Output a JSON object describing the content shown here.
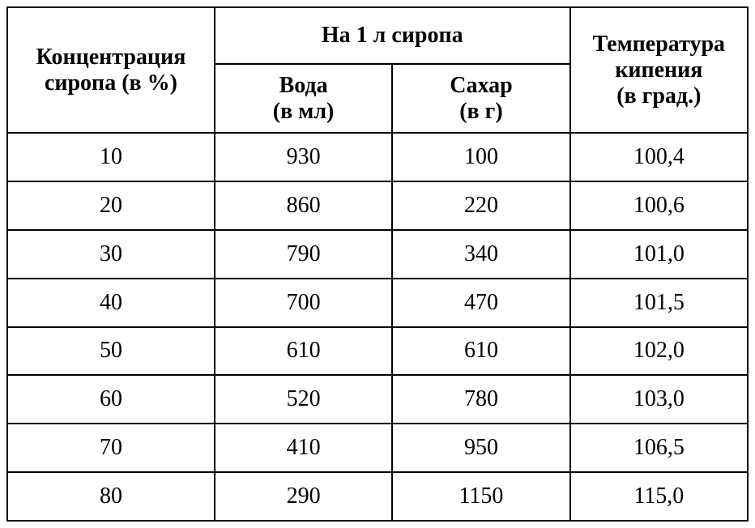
{
  "table": {
    "headers": {
      "concentration_line1": "Концентрация",
      "concentration_line2": "сиропа (в %)",
      "per_liter": "На 1 л сиропа",
      "water_line1": "Вода",
      "water_line2": "(в мл)",
      "sugar_line1": "Сахар",
      "sugar_line2": "(в г)",
      "temp_line1": "Температура",
      "temp_line2": "кипения",
      "temp_line3": "(в град.)"
    },
    "rows": [
      {
        "concentration": "10",
        "water": "930",
        "sugar": "100",
        "temp": "100,4"
      },
      {
        "concentration": "20",
        "water": "860",
        "sugar": "220",
        "temp": "100,6"
      },
      {
        "concentration": "30",
        "water": "790",
        "sugar": "340",
        "temp": "101,0"
      },
      {
        "concentration": "40",
        "water": "700",
        "sugar": "470",
        "temp": "101,5"
      },
      {
        "concentration": "50",
        "water": "610",
        "sugar": "610",
        "temp": "102,0"
      },
      {
        "concentration": "60",
        "water": "520",
        "sugar": "780",
        "temp": "103,0"
      },
      {
        "concentration": "70",
        "water": "410",
        "sugar": "950",
        "temp": "106,5"
      },
      {
        "concentration": "80",
        "water": "290",
        "sugar": "1150",
        "temp": "115,0"
      }
    ],
    "styling": {
      "border_color": "#000000",
      "border_width": 2,
      "background_color": "#ffffff",
      "text_color": "#000000",
      "font_family": "Georgia, Times New Roman, serif",
      "header_font_size": 28,
      "cell_font_size": 28,
      "header_font_weight": "bold",
      "cell_font_weight": "normal",
      "column_widths_pct": [
        28,
        24,
        24,
        24
      ]
    }
  }
}
